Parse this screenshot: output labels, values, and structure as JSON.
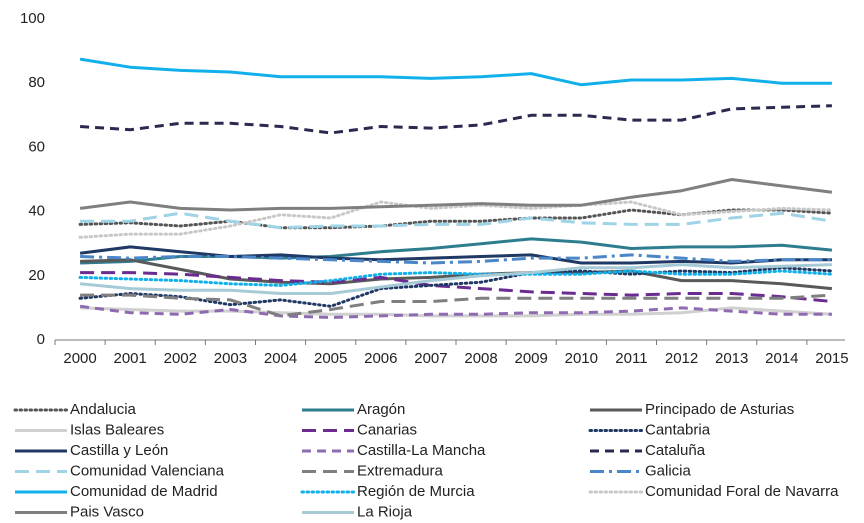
{
  "chart_data": {
    "type": "line",
    "categories": [
      "2000",
      "2001",
      "2002",
      "2003",
      "2004",
      "2005",
      "2006",
      "2007",
      "2008",
      "2009",
      "2010",
      "2011",
      "2012",
      "2013",
      "2014",
      "2015"
    ],
    "ylim": [
      0,
      100
    ],
    "yticks": [
      0,
      20,
      40,
      60,
      80,
      100
    ],
    "grid": false,
    "series": [
      {
        "name": "Andalucia",
        "color": "#555555",
        "dash": "dotted",
        "values": [
          36,
          36.5,
          35.5,
          37,
          35,
          35,
          35.5,
          37,
          37,
          38,
          38,
          40.5,
          39,
          40.5,
          40.5,
          39.5
        ]
      },
      {
        "name": "Aragón",
        "color": "#2e7d8f",
        "dash": "solid",
        "values": [
          24,
          24.5,
          26,
          26,
          25.5,
          26,
          27.5,
          28.5,
          30,
          31.5,
          30.5,
          28.5,
          29,
          29,
          29.5,
          28
        ]
      },
      {
        "name": "Principado de Asturias",
        "color": "#595959",
        "dash": "solid",
        "values": [
          24.5,
          25,
          22,
          19,
          18,
          17.5,
          19,
          19.5,
          20.5,
          21,
          21,
          21.5,
          18.5,
          18.5,
          17.5,
          16
        ]
      },
      {
        "name": "Islas Baleares",
        "color": "#d0d0d0",
        "dash": "solid",
        "values": [
          10,
          9.5,
          9,
          9,
          8.5,
          8,
          8,
          7.5,
          7.5,
          7.5,
          8,
          8,
          8.5,
          10,
          9,
          8
        ]
      },
      {
        "name": "Canarias",
        "color": "#6a2c91",
        "dash": "longdash",
        "values": [
          21,
          21,
          20.5,
          19.5,
          18.5,
          18,
          19.5,
          17,
          16,
          15,
          14.5,
          14,
          14.5,
          14.5,
          13.5,
          12
        ]
      },
      {
        "name": "Cantabria",
        "color": "#1f3864",
        "dash": "dotted",
        "values": [
          13,
          14.5,
          13.5,
          11,
          12.5,
          10.5,
          16,
          17,
          18,
          21,
          21.5,
          20.5,
          21.5,
          21,
          22.5,
          21.5
        ]
      },
      {
        "name": "Castilla y León",
        "color": "#1f3864",
        "dash": "solid",
        "values": [
          27,
          29,
          27.5,
          26,
          26.5,
          25.5,
          25,
          25.5,
          26,
          26.5,
          24,
          24,
          24.5,
          24,
          25,
          25
        ]
      },
      {
        "name": "Castilla-La Mancha",
        "color": "#8e6bb0",
        "dash": "dashed",
        "values": [
          10.5,
          8.5,
          8,
          9.5,
          7.5,
          7,
          7.5,
          8,
          8,
          8.5,
          8.5,
          9,
          10,
          9,
          8,
          8
        ]
      },
      {
        "name": "Cataluña",
        "color": "#2a2a50",
        "dash": "dashed",
        "values": [
          66.5,
          65.5,
          67.5,
          67.5,
          66.5,
          64.5,
          66.5,
          66,
          67,
          70,
          70,
          68.5,
          68.5,
          72,
          72.5,
          73
        ]
      },
      {
        "name": "Comunidad Valenciana",
        "color": "#9fd3e6",
        "dash": "longdash",
        "values": [
          37,
          37,
          39.5,
          37,
          35,
          35.5,
          35.5,
          36,
          36,
          38,
          36.5,
          36,
          36,
          38,
          39.5,
          37
        ]
      },
      {
        "name": "Extremadura",
        "color": "#7f7f7f",
        "dash": "longdash",
        "values": [
          14,
          14,
          13,
          12.5,
          7.5,
          9.5,
          12,
          12,
          13,
          13,
          13,
          13,
          13,
          13,
          13,
          14
        ]
      },
      {
        "name": "Galicia",
        "color": "#4a86c8",
        "dash": "dashdot",
        "values": [
          26,
          25.5,
          26,
          26,
          25.5,
          25,
          24.5,
          24,
          24.5,
          25.5,
          25.5,
          26.5,
          25.5,
          24.5,
          25,
          25
        ]
      },
      {
        "name": "Comunidad de Madrid",
        "color": "#12b0ea",
        "dash": "solid",
        "values": [
          87.5,
          85,
          84,
          83.5,
          82,
          82,
          82,
          81.5,
          82,
          83,
          79.5,
          81,
          81,
          81.5,
          80,
          80
        ]
      },
      {
        "name": "Región de Murcia",
        "color": "#12b0ea",
        "dash": "dotted",
        "values": [
          19.5,
          19,
          18.5,
          17.5,
          17,
          18.5,
          20.5,
          21,
          20.5,
          20.5,
          20.5,
          21.5,
          20.5,
          20.5,
          21.5,
          20.5
        ]
      },
      {
        "name": "Comunidad Foral de Navarra",
        "color": "#c8c8c8",
        "dash": "dotted",
        "values": [
          32,
          33,
          33,
          35.5,
          39,
          38,
          43,
          41,
          42,
          41,
          42,
          43,
          39,
          40,
          41,
          40.5
        ]
      },
      {
        "name": "Pais Vasco",
        "color": "#7f7f7f",
        "dash": "solid",
        "values": [
          41,
          43,
          41,
          40.5,
          41,
          41,
          41.5,
          42,
          42.5,
          42,
          42,
          44.5,
          46.5,
          50,
          48,
          46
        ]
      },
      {
        "name": "La Rioja",
        "color": "#a6cbd6",
        "dash": "solid",
        "values": [
          17.5,
          16,
          15.5,
          15.5,
          14.5,
          14.5,
          16.5,
          18.5,
          20,
          21,
          22.5,
          22.5,
          23.5,
          22.5,
          23,
          23.5
        ]
      }
    ]
  }
}
